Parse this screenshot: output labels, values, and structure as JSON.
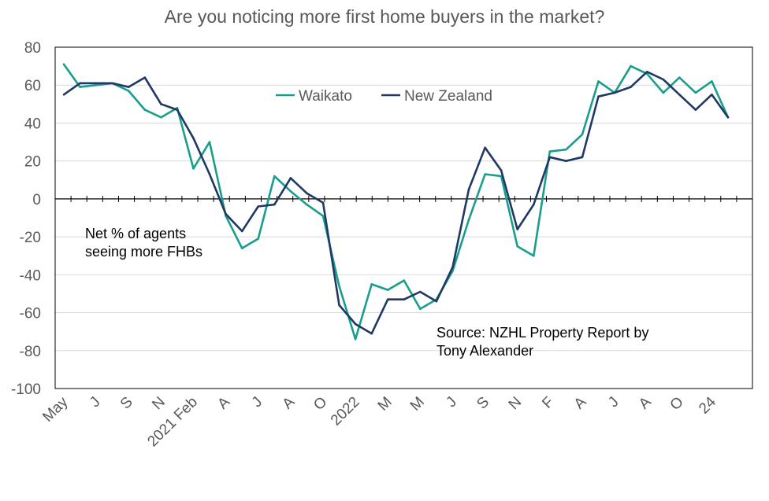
{
  "chart_data": {
    "type": "line",
    "title": "Are you noticing more first home buyers in the market?",
    "xlabel": "",
    "ylabel": "",
    "ylim": [
      -100,
      80
    ],
    "yticks": [
      80,
      60,
      40,
      20,
      0,
      -20,
      -40,
      -60,
      -80,
      -100
    ],
    "x_tick_labels": [
      "May",
      "J",
      "S",
      "N",
      "2021 Feb",
      "A",
      "J",
      "A",
      "O",
      "2022",
      "M",
      "M",
      "J",
      "S",
      "N",
      "F",
      "A",
      "J",
      "A",
      "O",
      "24"
    ],
    "annotation_ylabel": [
      "Net % of agents",
      "seeing more FHBs"
    ],
    "annotation_source": [
      "Source: NZHL Property Report by",
      "Tony Alexander"
    ],
    "grid": true,
    "legend_position": "top-center",
    "series": [
      {
        "name": "Waikato",
        "color": "#1a9e8c",
        "values": [
          71,
          59,
          60,
          61,
          57,
          47,
          43,
          48,
          16,
          30,
          -9,
          -26,
          -21,
          12,
          4,
          -3,
          -9,
          -46,
          -74,
          -45,
          -48,
          -43,
          -58,
          -53,
          -38,
          -11,
          13,
          12,
          -25,
          -30,
          25,
          26,
          34,
          62,
          56,
          70,
          66,
          56,
          64,
          56,
          62,
          43
        ]
      },
      {
        "name": "New Zealand",
        "color": "#1f3864",
        "values": [
          55,
          61,
          61,
          61,
          59,
          64,
          50,
          47,
          32,
          13,
          -8,
          -17,
          -4,
          -3,
          11,
          3,
          -2,
          -56,
          -66,
          -71,
          -53,
          -53,
          -49,
          -54,
          -36,
          5,
          27,
          15,
          -16,
          -3,
          22,
          20,
          22,
          54,
          56,
          59,
          67,
          63,
          55,
          47,
          55,
          43
        ]
      }
    ]
  }
}
